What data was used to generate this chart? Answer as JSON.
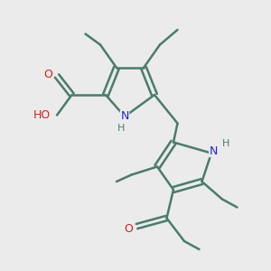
{
  "background_color": "#ebebeb",
  "bond_color": "#4a7c6a",
  "nitrogen_color": "#2222cc",
  "oxygen_color": "#cc2222",
  "line_width": 1.8,
  "font_size": 8.5,
  "figsize": [
    3.0,
    3.0
  ],
  "dpi": 100,
  "xlim": [
    0,
    10
  ],
  "ylim": [
    0,
    10
  ]
}
